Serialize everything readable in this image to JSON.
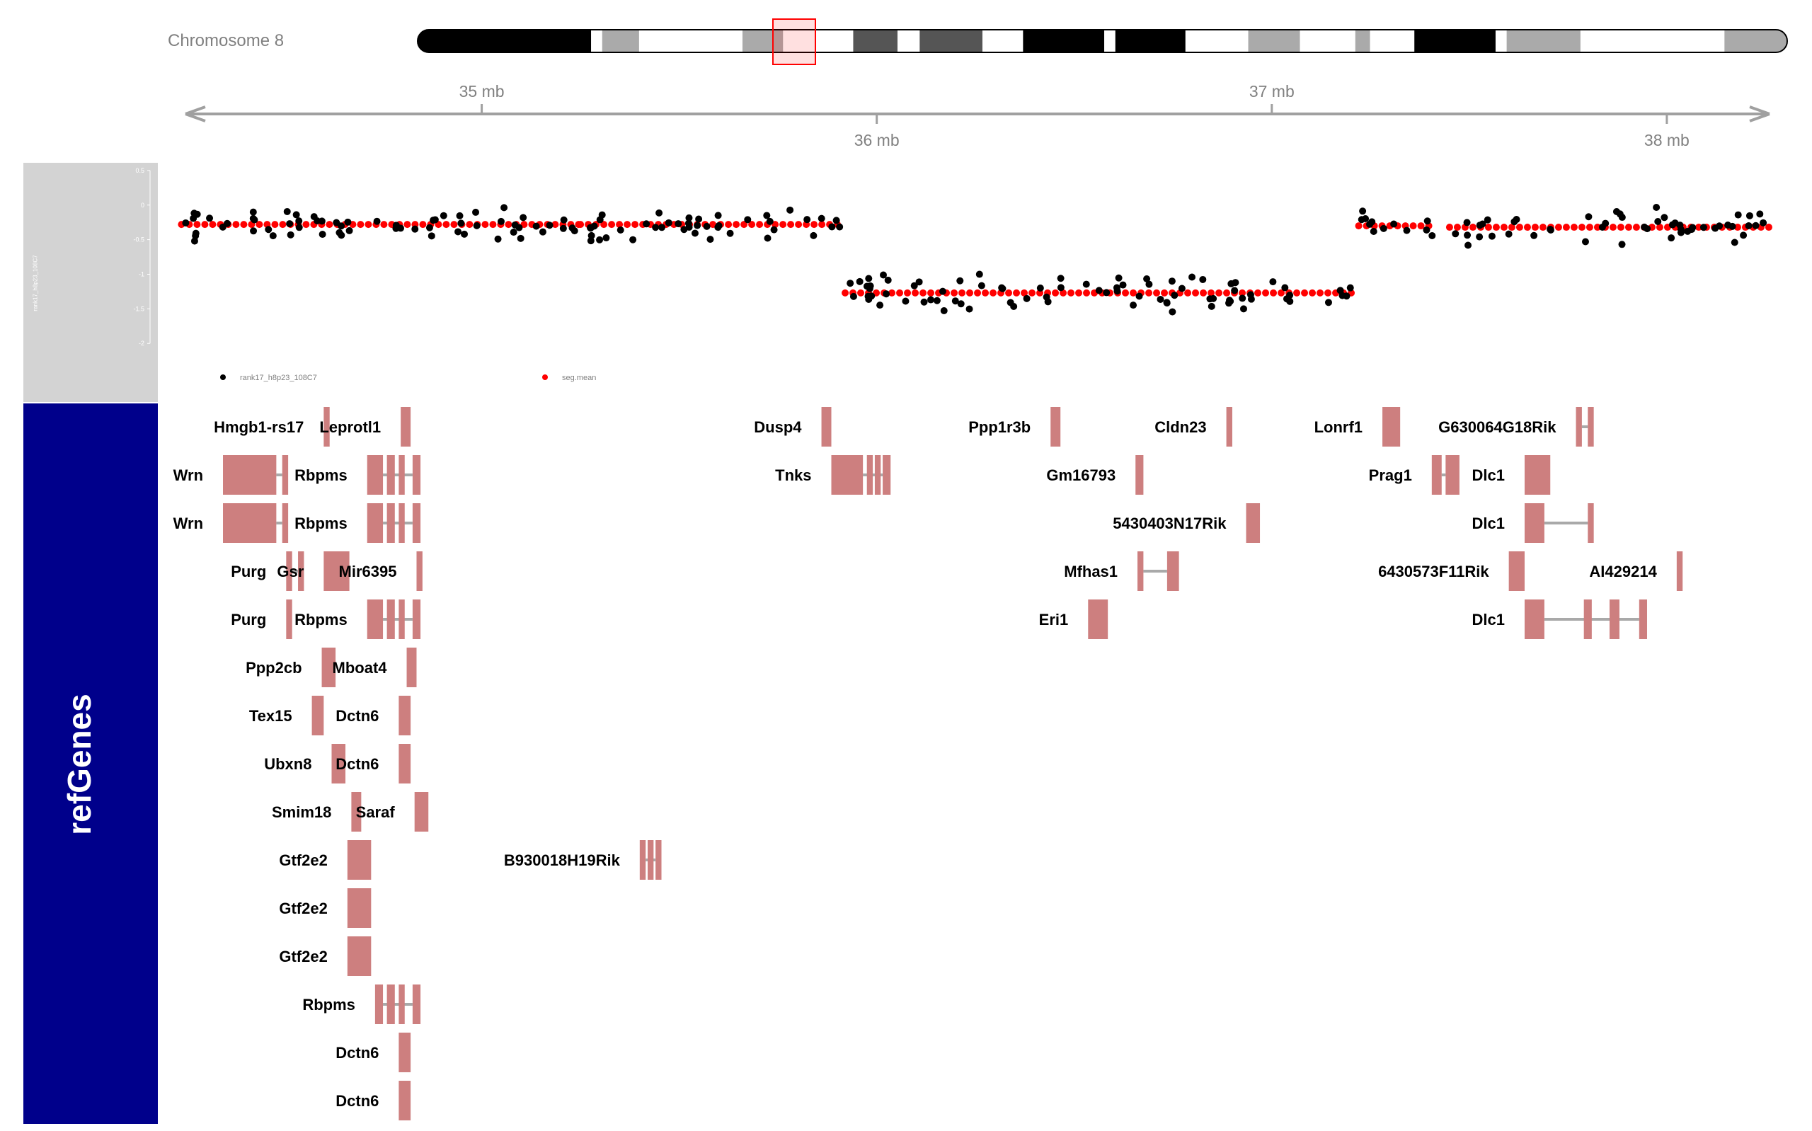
{
  "ideogram": {
    "label": "Chromosome 8",
    "bands": [
      {
        "color": "#000000"
      },
      {
        "color": "#ffffff"
      },
      {
        "color": "#aaaaaa"
      },
      {
        "color": "#ffffff"
      },
      {
        "color": "#aaaaaa"
      },
      {
        "color": "#ffffff"
      },
      {
        "color": "#555555"
      },
      {
        "color": "#ffffff"
      },
      {
        "color": "#555555"
      },
      {
        "color": "#ffffff"
      },
      {
        "color": "#000000"
      },
      {
        "color": "#ffffff"
      },
      {
        "color": "#000000"
      },
      {
        "color": "#ffffff"
      },
      {
        "color": "#aaaaaa"
      },
      {
        "color": "#ffffff"
      },
      {
        "color": "#aaaaaa"
      },
      {
        "color": "#ffffff"
      },
      {
        "color": "#000000"
      },
      {
        "color": "#ffffff"
      },
      {
        "color": "#aaaaaa"
      },
      {
        "color": "#ffffff"
      },
      {
        "color": "#aaaaaa"
      }
    ],
    "highlight_color": "#ff0000"
  },
  "genome_axis": {
    "ticks": [
      "35 mb",
      "36 mb",
      "37 mb",
      "38 mb"
    ],
    "tick_values_mb": [
      35,
      36,
      37,
      38
    ],
    "range_mb": [
      34.25,
      38.26
    ]
  },
  "data_track": {
    "title": "rank17_h8p23_108C7",
    "header_color": "#d3d3d3",
    "y_ticks": [
      "0.5",
      "0",
      "-0.5",
      "-1",
      "-1.5",
      "-2"
    ],
    "y_tick_values": [
      0.5,
      0,
      -0.5,
      -1,
      -1.5,
      -2
    ],
    "ylim": [
      -2.1,
      0.55
    ],
    "legend": [
      {
        "label": "rank17_h8p23_108C7",
        "color": "#000000"
      },
      {
        "label": "seg.mean",
        "color": "#ff0000"
      }
    ],
    "segments": [
      {
        "start_mb": 34.24,
        "end_mb": 35.25,
        "mean": -0.28
      },
      {
        "start_mb": 35.25,
        "end_mb": 35.92,
        "mean": -0.28
      },
      {
        "start_mb": 35.92,
        "end_mb": 37.22,
        "mean": -1.27
      },
      {
        "start_mb": 37.22,
        "end_mb": 37.41,
        "mean": -0.3
      },
      {
        "start_mb": 37.45,
        "end_mb": 38.26,
        "mean": -0.32
      }
    ]
  },
  "genes_track": {
    "title": "refGenes",
    "header_color": "#00008b",
    "gene_color": "#cd7f7f",
    "intron_color": "#a9a9a9",
    "genes": [
      {
        "name": "Hmgb1-rs17",
        "row": 0,
        "exons": [
          [
            34.6,
            34.615
          ]
        ]
      },
      {
        "name": "Leprotl1",
        "row": 0,
        "exons": [
          [
            34.795,
            34.82
          ]
        ]
      },
      {
        "name": "Dusp4",
        "row": 0,
        "exons": [
          [
            35.86,
            35.885
          ]
        ]
      },
      {
        "name": "Ppp1r3b",
        "row": 0,
        "exons": [
          [
            36.44,
            36.465
          ]
        ]
      },
      {
        "name": "Cldn23",
        "row": 0,
        "exons": [
          [
            36.885,
            36.9
          ]
        ]
      },
      {
        "name": "Lonrf1",
        "row": 0,
        "exons": [
          [
            37.28,
            37.325
          ]
        ]
      },
      {
        "name": "G630064G18Rik",
        "row": 0,
        "exons": [
          [
            37.77,
            37.785
          ],
          [
            37.8,
            37.815
          ]
        ]
      },
      {
        "name": "Wrn",
        "row": 1,
        "exons": [
          [
            34.345,
            34.48
          ],
          [
            34.495,
            34.51
          ]
        ]
      },
      {
        "name": "Rbpms",
        "row": 1,
        "exons": [
          [
            34.71,
            34.75
          ],
          [
            34.76,
            34.78
          ],
          [
            34.79,
            34.805
          ],
          [
            34.825,
            34.845
          ]
        ]
      },
      {
        "name": "Tnks",
        "row": 1,
        "exons": [
          [
            35.885,
            35.965
          ],
          [
            35.975,
            35.99
          ],
          [
            35.995,
            36.01
          ],
          [
            36.015,
            36.035
          ]
        ]
      },
      {
        "name": "Gm16793",
        "row": 1,
        "exons": [
          [
            36.655,
            36.675
          ]
        ]
      },
      {
        "name": "Prag1",
        "row": 1,
        "exons": [
          [
            37.405,
            37.43
          ],
          [
            37.44,
            37.475
          ]
        ]
      },
      {
        "name": "Dlc1",
        "row": 1,
        "exons": [
          [
            37.64,
            37.705
          ]
        ]
      },
      {
        "name": "Wrn",
        "row": 2,
        "exons": [
          [
            34.345,
            34.48
          ],
          [
            34.495,
            34.51
          ]
        ]
      },
      {
        "name": "Rbpms",
        "row": 2,
        "exons": [
          [
            34.71,
            34.75
          ],
          [
            34.76,
            34.78
          ],
          [
            34.79,
            34.805
          ],
          [
            34.825,
            34.845
          ]
        ]
      },
      {
        "name": "5430403N17Rik",
        "row": 2,
        "exons": [
          [
            36.935,
            36.97
          ]
        ]
      },
      {
        "name": "Dlc1",
        "row": 2,
        "exons": [
          [
            37.64,
            37.69
          ],
          [
            37.8,
            37.815
          ]
        ]
      },
      {
        "name": "Purg",
        "row": 3,
        "exons": [
          [
            34.505,
            34.52
          ],
          [
            34.535,
            34.55
          ]
        ]
      },
      {
        "name": "Gsr",
        "row": 3,
        "exons": [
          [
            34.6,
            34.665
          ]
        ]
      },
      {
        "name": "Mir6395",
        "row": 3,
        "exons": [
          [
            34.835,
            34.85
          ]
        ]
      },
      {
        "name": "Mfhas1",
        "row": 3,
        "exons": [
          [
            36.66,
            36.675
          ],
          [
            36.735,
            36.765
          ]
        ]
      },
      {
        "name": "6430573F11Rik",
        "row": 3,
        "exons": [
          [
            37.6,
            37.64
          ]
        ]
      },
      {
        "name": "AI429214",
        "row": 3,
        "exons": [
          [
            38.025,
            38.04
          ]
        ]
      },
      {
        "name": "Purg",
        "row": 4,
        "exons": [
          [
            34.505,
            34.52
          ]
        ]
      },
      {
        "name": "Rbpms",
        "row": 4,
        "exons": [
          [
            34.71,
            34.75
          ],
          [
            34.76,
            34.78
          ],
          [
            34.79,
            34.805
          ],
          [
            34.825,
            34.845
          ]
        ]
      },
      {
        "name": "Eri1",
        "row": 4,
        "exons": [
          [
            36.535,
            36.585
          ]
        ]
      },
      {
        "name": "Dlc1",
        "row": 4,
        "exons": [
          [
            37.64,
            37.69
          ],
          [
            37.79,
            37.81
          ],
          [
            37.855,
            37.88
          ],
          [
            37.93,
            37.95
          ]
        ]
      },
      {
        "name": "Ppp2cb",
        "row": 5,
        "exons": [
          [
            34.595,
            34.63
          ]
        ]
      },
      {
        "name": "Mboat4",
        "row": 5,
        "exons": [
          [
            34.81,
            34.835
          ]
        ]
      },
      {
        "name": "Tex15",
        "row": 6,
        "exons": [
          [
            34.57,
            34.6
          ]
        ]
      },
      {
        "name": "Dctn6",
        "row": 6,
        "exons": [
          [
            34.79,
            34.82
          ]
        ]
      },
      {
        "name": "Ubxn8",
        "row": 7,
        "exons": [
          [
            34.62,
            34.655
          ]
        ]
      },
      {
        "name": "Dctn6",
        "row": 7,
        "exons": [
          [
            34.79,
            34.82
          ]
        ]
      },
      {
        "name": "Smim18",
        "row": 8,
        "exons": [
          [
            34.67,
            34.695
          ]
        ]
      },
      {
        "name": "Saraf",
        "row": 8,
        "exons": [
          [
            34.83,
            34.865
          ]
        ]
      },
      {
        "name": "Gtf2e2",
        "row": 9,
        "exons": [
          [
            34.66,
            34.72
          ]
        ]
      },
      {
        "name": "B930018H19Rik",
        "row": 9,
        "exons": [
          [
            35.4,
            35.415
          ],
          [
            35.42,
            35.435
          ],
          [
            35.44,
            35.455
          ]
        ]
      },
      {
        "name": "Gtf2e2",
        "row": 10,
        "exons": [
          [
            34.66,
            34.72
          ]
        ]
      },
      {
        "name": "Gtf2e2",
        "row": 11,
        "exons": [
          [
            34.66,
            34.72
          ]
        ]
      },
      {
        "name": "Rbpms",
        "row": 12,
        "exons": [
          [
            34.73,
            34.75
          ],
          [
            34.76,
            34.78
          ],
          [
            34.79,
            34.805
          ],
          [
            34.825,
            34.845
          ]
        ]
      },
      {
        "name": "Dctn6",
        "row": 13,
        "exons": [
          [
            34.79,
            34.82
          ]
        ]
      },
      {
        "name": "Dctn6",
        "row": 14,
        "exons": [
          [
            34.79,
            34.82
          ]
        ]
      }
    ]
  }
}
